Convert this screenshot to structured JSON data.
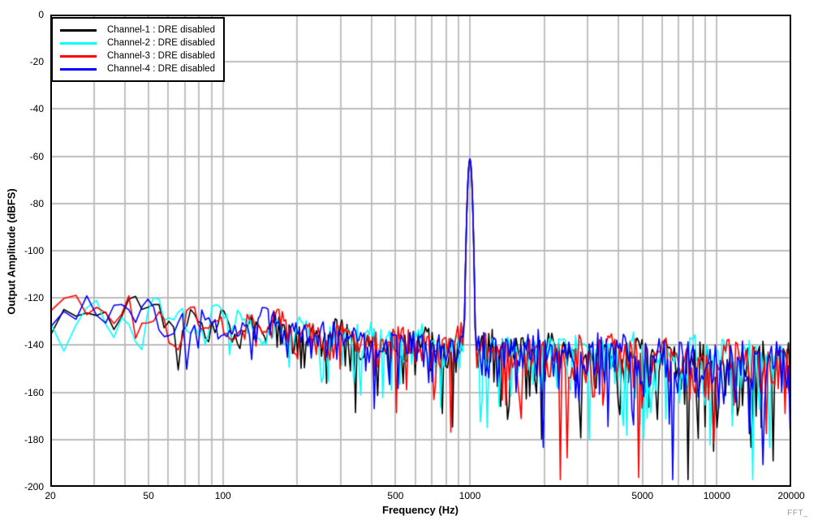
{
  "watermark": "FFT_",
  "colors": {
    "grid": "#bbbbbb",
    "frame": "#000000",
    "background": "#ffffff",
    "watermark_text": "#9c9c9c"
  },
  "axes": {
    "x": {
      "label": "Frequency (Hz)",
      "scale": "log",
      "min": 20,
      "max": 20000,
      "tick_labels": [
        20,
        50,
        100,
        500,
        1000,
        5000,
        10000,
        20000
      ],
      "gridlines": [
        30,
        40,
        50,
        60,
        70,
        80,
        90,
        100,
        200,
        300,
        400,
        500,
        600,
        700,
        800,
        900,
        1000,
        2000,
        3000,
        4000,
        5000,
        6000,
        7000,
        8000,
        9000,
        10000
      ]
    },
    "y": {
      "label": "Output Amplitude (dBFS)",
      "min": -200,
      "max": 0,
      "tick_labels": [
        0,
        -20,
        -40,
        -60,
        -80,
        -100,
        -120,
        -140,
        -160,
        -180,
        -200
      ],
      "gridlines": [
        -20,
        -40,
        -60,
        -80,
        -100,
        -120,
        -140,
        -160,
        -180
      ]
    }
  },
  "chart_data": {
    "type": "line",
    "xlabel": "Frequency (Hz)",
    "ylabel": "Output Amplitude (dBFS)",
    "x_scale": "log",
    "xlim": [
      20,
      20000
    ],
    "ylim": [
      -200,
      0
    ],
    "grid": true,
    "legend_position": "top-left",
    "tone_frequency_hz": 1000,
    "noise_top_envelope_dbfs": [
      [
        20,
        -120
      ],
      [
        50,
        -122
      ],
      [
        100,
        -125
      ],
      [
        200,
        -128
      ],
      [
        500,
        -131
      ],
      [
        1000,
        -132
      ],
      [
        2000,
        -133.5
      ],
      [
        5000,
        -135
      ],
      [
        10000,
        -136
      ],
      [
        20000,
        -136.5
      ]
    ],
    "noise_floor_mean_dbfs_at_20hz": -125,
    "noise_floor_mean_dbfs_at_20khz": -150,
    "noise_deepest_spikes_dbfs": -190,
    "series": [
      {
        "name": "Channel-1 : DRE disabled",
        "color": "#000000",
        "seed": 1013,
        "tone_peak_dbfs": -62
      },
      {
        "name": "Channel-2 : DRE disabled",
        "color": "#00FFFF",
        "seed": 2024,
        "tone_peak_dbfs": -62
      },
      {
        "name": "Channel-3 : DRE disabled",
        "color": "#FF0000",
        "seed": 3031,
        "tone_peak_dbfs": -61.5
      },
      {
        "name": "Channel-4 : DRE disabled",
        "color": "#0000FF",
        "seed": 4057,
        "tone_peak_dbfs": -61
      }
    ]
  }
}
